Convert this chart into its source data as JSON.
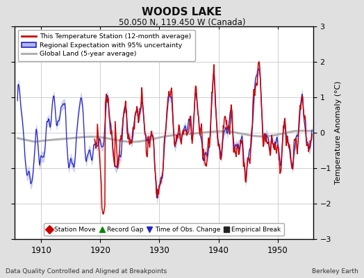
{
  "title": "WOODS LAKE",
  "subtitle": "50.050 N, 119.450 W (Canada)",
  "ylabel": "Temperature Anomaly (°C)",
  "xlabel_bottom": "Data Quality Controlled and Aligned at Breakpoints",
  "xlabel_right": "Berkeley Earth",
  "xlim": [
    1905.5,
    1956.0
  ],
  "ylim": [
    -3,
    3
  ],
  "yticks": [
    -3,
    -2,
    -1,
    0,
    1,
    2,
    3
  ],
  "xticks": [
    1910,
    1920,
    1930,
    1940,
    1950
  ],
  "background_color": "#e0e0e0",
  "plot_bg_color": "#ffffff",
  "grid_color": "#c8c8c8",
  "red_color": "#cc0000",
  "blue_color": "#2222cc",
  "blue_fill_color": "#b0b8e8",
  "gray_color": "#b0b0b0",
  "legend_entries": [
    "This Temperature Station (12-month average)",
    "Regional Expectation with 95% uncertainty",
    "Global Land (5-year average)"
  ],
  "bottom_legend": [
    {
      "marker": "D",
      "color": "#cc0000",
      "label": "Station Move"
    },
    {
      "marker": "^",
      "color": "#008800",
      "label": "Record Gap"
    },
    {
      "marker": "v",
      "color": "#2222cc",
      "label": "Time of Obs. Change"
    },
    {
      "marker": "s",
      "color": "#222222",
      "label": "Empirical Break"
    }
  ]
}
